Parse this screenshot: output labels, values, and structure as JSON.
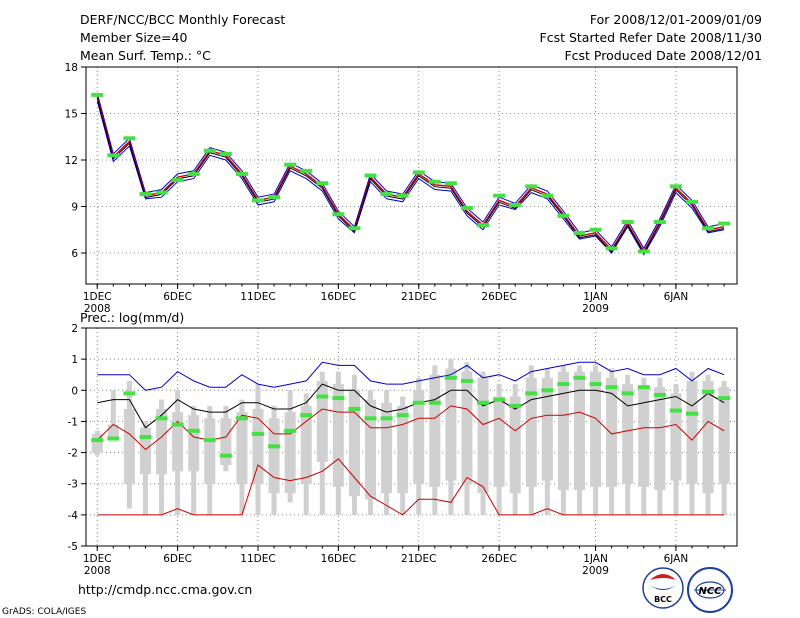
{
  "header": {
    "left": [
      "DERF/NCC/BCC Monthly Forecast",
      "Member Size=40",
      "Mean Surf. Temp.: °C"
    ],
    "right": [
      "For 2008/12/01-2009/01/09",
      "Fcst Started Refer Date 2008/11/30",
      "Fcst Produced Date 2008/12/01"
    ]
  },
  "footer": {
    "url": "http://cmdp.ncc.cma.gov.cn",
    "credit": "GrADS: COLA/IGES",
    "logo_bcc_text": "BCC",
    "logo_ncc_text": "NCC"
  },
  "colors": {
    "mean": "#000000",
    "upper": "#0000cc",
    "lower": "#cc0000",
    "ctrl": "#44e044",
    "box": "#d0d0d0",
    "grid": "#888888"
  },
  "chart_data": [
    {
      "type": "line",
      "title": "Mean Surf. Temp.: °C",
      "x": [
        1,
        2,
        3,
        4,
        5,
        6,
        7,
        8,
        9,
        10,
        11,
        12,
        13,
        14,
        15,
        16,
        17,
        18,
        19,
        20,
        21,
        22,
        23,
        24,
        25,
        26,
        27,
        28,
        29,
        30,
        31,
        32,
        33,
        34,
        35,
        36,
        37,
        38,
        39,
        40
      ],
      "xtick_values": [
        1,
        6,
        11,
        16,
        21,
        26,
        32,
        37
      ],
      "xtick_labels": [
        "1DEC",
        "6DEC",
        "11DEC",
        "16DEC",
        "21DEC",
        "26DEC",
        "1JAN",
        "6JAN"
      ],
      "xtick_sublabels": [
        {
          "x": 1,
          "label": "2008"
        },
        {
          "x": 32,
          "label": "2009"
        }
      ],
      "xlim": [
        0.3,
        40.8
      ],
      "ylim": [
        4,
        18
      ],
      "yticks": [
        6,
        9,
        12,
        15,
        18
      ],
      "series": [
        {
          "name": "upper",
          "values": [
            16.3,
            12.4,
            13.4,
            9.9,
            10.1,
            11.1,
            11.3,
            12.8,
            12.5,
            11.3,
            9.6,
            9.8,
            11.8,
            11.3,
            10.5,
            8.7,
            7.7,
            11.1,
            10.0,
            9.8,
            11.3,
            10.6,
            10.5,
            8.9,
            8.0,
            9.6,
            9.2,
            10.4,
            10.0,
            8.7,
            7.3,
            7.5,
            6.4,
            8.1,
            6.3,
            8.2,
            10.4,
            9.4,
            7.7,
            7.9
          ]
        },
        {
          "name": "mean",
          "values": [
            16.1,
            12.2,
            13.2,
            9.7,
            9.9,
            10.9,
            11.1,
            12.6,
            12.3,
            11.1,
            9.4,
            9.6,
            11.6,
            11.1,
            10.3,
            8.5,
            7.5,
            10.9,
            9.8,
            9.6,
            11.1,
            10.4,
            10.3,
            8.7,
            7.8,
            9.4,
            9.0,
            10.2,
            9.8,
            8.5,
            7.1,
            7.3,
            6.2,
            7.9,
            6.1,
            8.0,
            10.2,
            9.2,
            7.5,
            7.7
          ]
        },
        {
          "name": "lower",
          "values": [
            15.8,
            11.9,
            12.9,
            9.5,
            9.6,
            10.6,
            10.8,
            12.3,
            12.0,
            10.8,
            9.1,
            9.3,
            11.3,
            10.8,
            10.0,
            8.2,
            7.3,
            10.6,
            9.5,
            9.3,
            10.8,
            10.1,
            10.0,
            8.4,
            7.5,
            9.1,
            8.8,
            9.9,
            9.5,
            8.2,
            6.9,
            7.1,
            6.0,
            7.7,
            5.9,
            7.7,
            9.9,
            8.9,
            7.3,
            7.5
          ]
        },
        {
          "name": "control",
          "values": [
            16.2,
            12.3,
            13.4,
            9.8,
            9.9,
            10.7,
            11.1,
            12.6,
            12.4,
            11.1,
            9.4,
            9.6,
            11.7,
            11.3,
            10.5,
            8.5,
            7.6,
            11.0,
            9.8,
            9.7,
            11.2,
            10.6,
            10.5,
            8.9,
            7.8,
            9.7,
            9.1,
            10.3,
            9.7,
            8.4,
            7.3,
            7.5,
            6.3,
            8.0,
            6.1,
            8.0,
            10.3,
            9.3,
            7.6,
            7.9
          ]
        }
      ]
    },
    {
      "type": "box",
      "title": "Prec.: log(mm/d)",
      "x": [
        1,
        2,
        3,
        4,
        5,
        6,
        7,
        8,
        9,
        10,
        11,
        12,
        13,
        14,
        15,
        16,
        17,
        18,
        19,
        20,
        21,
        22,
        23,
        24,
        25,
        26,
        27,
        28,
        29,
        30,
        31,
        32,
        33,
        34,
        35,
        36,
        37,
        38,
        39,
        40
      ],
      "xtick_values": [
        1,
        6,
        11,
        16,
        21,
        26,
        32,
        37
      ],
      "xtick_labels": [
        "1DEC",
        "6DEC",
        "11DEC",
        "16DEC",
        "21DEC",
        "26DEC",
        "1JAN",
        "6JAN"
      ],
      "xtick_sublabels": [
        {
          "x": 1,
          "label": "2008"
        },
        {
          "x": 32,
          "label": "2009"
        }
      ],
      "xlim": [
        0.3,
        40.8
      ],
      "ylim": [
        -5,
        2
      ],
      "yticks": [
        -5,
        -4,
        -3,
        -2,
        -1,
        0,
        1,
        2
      ],
      "whisker_low": [
        -2.1,
        -1.6,
        -3.8,
        -4,
        -4,
        -4,
        -4,
        -4,
        -2.6,
        -4,
        -4,
        -4,
        -3.6,
        -4,
        -4,
        -4,
        -4,
        -4,
        -4,
        -4,
        -4,
        -4,
        -4,
        -4,
        -4,
        -4,
        -4,
        -4,
        -4,
        -4,
        -4,
        -4,
        -4,
        -4,
        -4,
        -4,
        -4,
        -4,
        -4,
        -4
      ],
      "whisker_high": [
        -1.3,
        0,
        0.3,
        -1.0,
        -0.3,
        0,
        -0.5,
        -0.5,
        -0.5,
        -0.3,
        0.2,
        -0.5,
        0,
        -0.1,
        0.6,
        0.6,
        0.5,
        0,
        0,
        -0.2,
        0.4,
        0.8,
        1.0,
        0.9,
        0.6,
        0.2,
        0.2,
        0.8,
        0.7,
        0.8,
        0.8,
        0.8,
        0.7,
        0.5,
        0.4,
        0.4,
        0.2,
        0.6,
        0.5,
        0.3
      ],
      "box_low": [
        -2.0,
        -1.5,
        -3.0,
        -2.7,
        -2.7,
        -2.6,
        -2.6,
        -3.0,
        -2.4,
        -3.0,
        -3.0,
        -3.3,
        -3.3,
        -3.0,
        -2.3,
        -3.1,
        -3.4,
        -3.5,
        -3.3,
        -3.3,
        -3.0,
        -3.1,
        -2.9,
        -3.0,
        -3.3,
        -3.1,
        -3.3,
        -3.1,
        -2.9,
        -3.2,
        -3.2,
        -3.1,
        -3.1,
        -3.0,
        -3.1,
        -3.2,
        -2.9,
        -3.0,
        -3.3,
        -3.0
      ],
      "box_high": [
        -1.4,
        -1.1,
        -0.6,
        -1.2,
        -0.6,
        -0.7,
        -0.8,
        -0.9,
        -0.9,
        -0.7,
        -0.6,
        -0.9,
        -0.7,
        -0.5,
        0.3,
        0.2,
        0.0,
        -0.3,
        -0.4,
        -0.5,
        0.0,
        0.5,
        0.7,
        0.6,
        0.4,
        -0.2,
        -0.2,
        0.4,
        0.4,
        0.6,
        0.6,
        0.6,
        0.4,
        0.2,
        0.1,
        0.1,
        -0.1,
        0.3,
        0.3,
        0.1
      ],
      "series": [
        {
          "name": "upper",
          "values": [
            0.5,
            0.5,
            0.5,
            0.0,
            0.1,
            0.6,
            0.3,
            0.1,
            0.1,
            0.5,
            0.2,
            0.1,
            0.2,
            0.3,
            0.9,
            0.8,
            0.8,
            0.3,
            0.2,
            0.2,
            0.3,
            0.4,
            0.5,
            0.8,
            0.4,
            0.5,
            0.3,
            0.6,
            0.7,
            0.8,
            0.9,
            0.9,
            0.6,
            0.7,
            0.5,
            0.5,
            0.7,
            0.3,
            0.7,
            0.5
          ]
        },
        {
          "name": "mean",
          "values": [
            -0.4,
            -0.3,
            -0.3,
            -1.2,
            -0.8,
            -0.3,
            -0.6,
            -0.7,
            -0.7,
            -0.4,
            -0.4,
            -0.6,
            -0.6,
            -0.4,
            0.2,
            0.0,
            0.0,
            -0.5,
            -0.7,
            -0.6,
            -0.4,
            -0.3,
            0.0,
            0.0,
            -0.5,
            -0.3,
            -0.6,
            -0.3,
            -0.2,
            -0.1,
            0.0,
            0.0,
            -0.1,
            -0.5,
            -0.4,
            -0.3,
            -0.2,
            -0.5,
            -0.1,
            -0.4
          ]
        },
        {
          "name": "lower",
          "values": [
            -1.6,
            -1.1,
            -1.4,
            -1.9,
            -1.5,
            -1.0,
            -1.5,
            -1.6,
            -1.5,
            -0.8,
            -0.9,
            -1.4,
            -1.4,
            -1.0,
            -0.6,
            -0.7,
            -0.7,
            -1.2,
            -1.2,
            -1.1,
            -0.9,
            -0.9,
            -0.5,
            -0.6,
            -1.1,
            -0.9,
            -1.3,
            -0.9,
            -0.8,
            -0.8,
            -0.7,
            -0.9,
            -1.4,
            -1.3,
            -1.2,
            -1.2,
            -1.1,
            -1.6,
            -1.0,
            -1.3
          ]
        },
        {
          "name": "min",
          "values": [
            -4,
            -4,
            -4,
            -4,
            -4,
            -3.8,
            -4,
            -4,
            -4,
            -4,
            -2.4,
            -2.8,
            -2.9,
            -2.8,
            -2.6,
            -2.2,
            -2.8,
            -3.4,
            -3.7,
            -4,
            -3.5,
            -3.5,
            -3.6,
            -2.8,
            -3.1,
            -4,
            -4,
            -4,
            -3.8,
            -4,
            -4,
            -4,
            -4,
            -4,
            -4,
            -4,
            -4,
            -4,
            -4,
            -4
          ]
        },
        {
          "name": "control",
          "values": [
            -1.6,
            -1.55,
            -0.1,
            -1.5,
            -0.9,
            -1.1,
            -1.3,
            -1.6,
            -2.1,
            -0.9,
            -1.4,
            -1.8,
            -1.3,
            -0.8,
            -0.2,
            -0.25,
            -0.6,
            -0.9,
            -0.9,
            -0.8,
            -0.4,
            -0.4,
            0.4,
            0.3,
            -0.4,
            -0.3,
            -0.5,
            -0.1,
            0.0,
            0.2,
            0.4,
            0.2,
            0.1,
            -0.1,
            0.1,
            -0.15,
            -0.65,
            -0.75,
            -0.05,
            -0.25
          ]
        }
      ]
    }
  ]
}
